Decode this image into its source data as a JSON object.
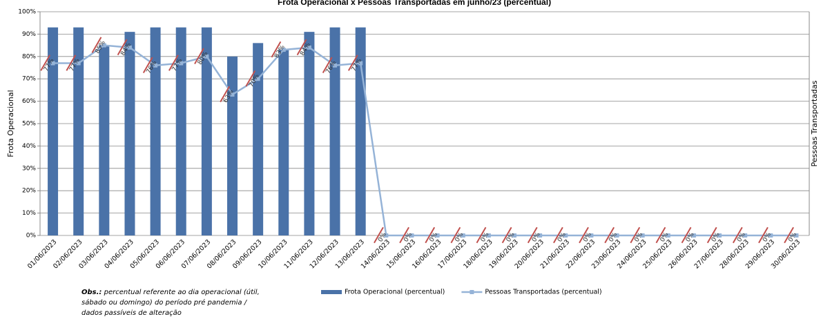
{
  "chart_data": {
    "type": "bar-line",
    "title": "Frota Operacional x Pessoas Transportadas em junho/23 (percentual)",
    "y_label": "Frota Operacional",
    "y2_label": "Pessoas Transportadas",
    "note_label": "Obs.:",
    "note_text": "percentual referente ao dia operacional (útil, sábado ou domingo) do período pré pandemia / dados passíveis de alteração",
    "categories": [
      "01/06/2023",
      "02/06/2023",
      "03/06/2023",
      "04/06/2023",
      "05/06/2023",
      "06/06/2023",
      "07/06/2023",
      "08/06/2023",
      "09/06/2023",
      "10/06/2023",
      "11/06/2023",
      "12/06/2023",
      "13/06/2023",
      "14/06/2023",
      "15/06/2023",
      "16/06/2023",
      "17/06/2023",
      "18/06/2023",
      "19/06/2023",
      "20/06/2023",
      "21/06/2023",
      "22/06/2023",
      "23/06/2023",
      "24/06/2023",
      "25/06/2023",
      "26/06/2023",
      "27/06/2023",
      "28/06/2023",
      "29/06/2023",
      "30/06/2023"
    ],
    "series": [
      {
        "name": "Frota Operacional (percentual)",
        "color": "#4a72a8",
        "kind": "bar",
        "values": [
          93,
          93,
          85,
          91,
          93,
          93,
          93,
          80,
          86,
          83,
          91,
          93,
          93,
          0,
          0,
          0,
          0,
          0,
          0,
          0,
          0,
          0,
          0,
          0,
          0,
          0,
          0,
          0,
          0,
          0
        ]
      },
      {
        "name": "Pessoas Transportadas (percentual)",
        "color": "#95b3d7",
        "kind": "line",
        "values": [
          77,
          77,
          85,
          84,
          76,
          77,
          80,
          63,
          70,
          83,
          84,
          76,
          77,
          0,
          0,
          0,
          0,
          0,
          0,
          0,
          0,
          0,
          0,
          0,
          0,
          0,
          0,
          0,
          0,
          0
        ],
        "value_labels": [
          "77%",
          "77%",
          "85%",
          "84%",
          "76%",
          "77%",
          "80%",
          "63%",
          "70%",
          "83%",
          "84%",
          "76%",
          "77%",
          "0%",
          "0%",
          "0%",
          "0%",
          "0%",
          "0%",
          "0%",
          "0%",
          "0%",
          "0%",
          "0%",
          "0%",
          "0%",
          "0%",
          "0%",
          "0%",
          "0%"
        ]
      }
    ],
    "ylim": [
      0,
      100
    ],
    "yticks": [
      {
        "value": 0,
        "label": "0%"
      },
      {
        "value": 10,
        "label": "10%"
      },
      {
        "value": 20,
        "label": "20%"
      },
      {
        "value": 30,
        "label": "30%"
      },
      {
        "value": 40,
        "label": "40%"
      },
      {
        "value": 50,
        "label": "50%"
      },
      {
        "value": 60,
        "label": "60%"
      },
      {
        "value": 70,
        "label": "70%"
      },
      {
        "value": 80,
        "label": "80%"
      },
      {
        "value": 90,
        "label": "90%"
      },
      {
        "value": 100,
        "label": "100%"
      }
    ],
    "grid": true
  }
}
